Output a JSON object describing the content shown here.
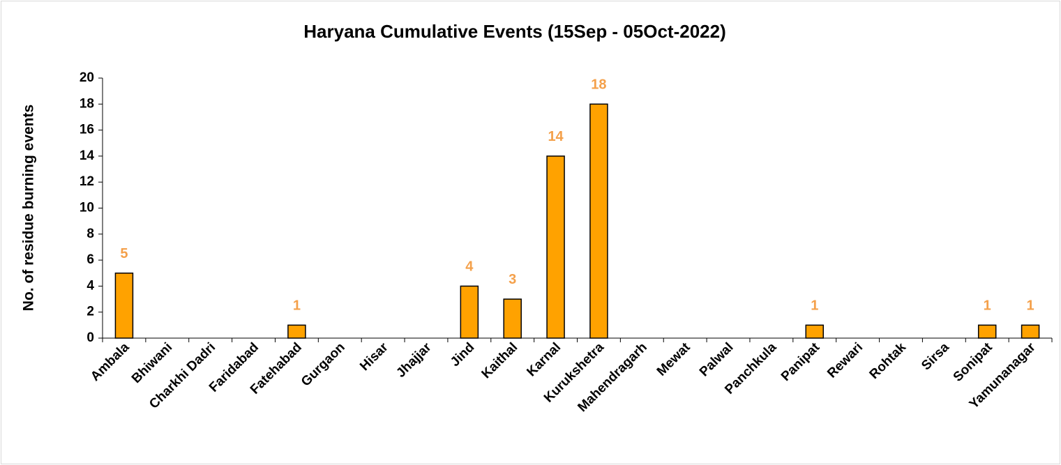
{
  "chart_data": {
    "type": "bar",
    "title": "Haryana Cumulative Events (15Sep - 05Oct-2022)",
    "y_label": "No. of residue burning events",
    "categories": [
      "Ambala",
      "Bhiwani",
      "Charkhi Dadri",
      "Faridabad",
      "Fatehabad",
      "Gurgaon",
      "Hisar",
      "Jhajjar",
      "Jind",
      "Kaithal",
      "Karnal",
      "Kurukshetra",
      "Mahendragarh",
      "Mewat",
      "Palwal",
      "Panchkula",
      "Panipat",
      "Rewari",
      "Rohtak",
      "Sirsa",
      "Sonipat",
      "Yamunanagar"
    ],
    "values": [
      5,
      0,
      0,
      0,
      1,
      0,
      0,
      0,
      4,
      3,
      14,
      18,
      0,
      0,
      0,
      0,
      1,
      0,
      0,
      0,
      1,
      1
    ],
    "color": "#ffa200",
    "label_color": "#f4a04a",
    "ylim": [
      0,
      20
    ],
    "yticks": [
      0,
      2,
      4,
      6,
      8,
      10,
      12,
      14,
      16,
      18,
      20
    ],
    "grid": false
  }
}
